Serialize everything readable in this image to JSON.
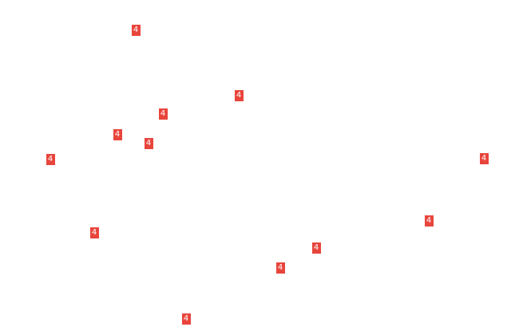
{
  "accent_color": "#e8453c",
  "markers": [
    {
      "label": "4"
    },
    {
      "label": "4"
    },
    {
      "label": "4"
    },
    {
      "label": "4"
    },
    {
      "label": "4"
    },
    {
      "label": "4"
    },
    {
      "label": "4"
    },
    {
      "label": "4"
    },
    {
      "label": "4"
    },
    {
      "label": "4"
    },
    {
      "label": "4"
    },
    {
      "label": "4"
    }
  ]
}
